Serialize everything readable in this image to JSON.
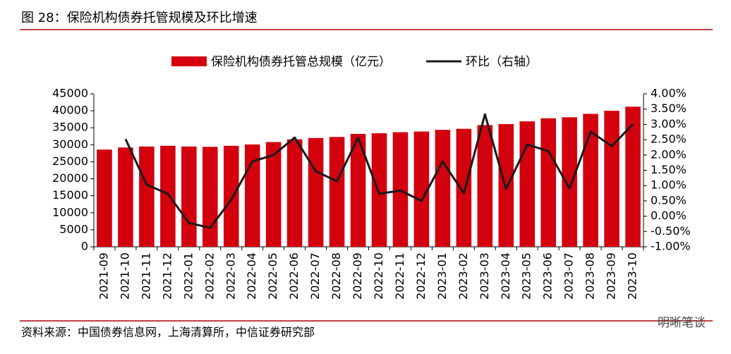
{
  "chart_data": {
    "type": "bar_line",
    "title": "图 28：保险机构债券托管规模及环比增速",
    "source": "资料来源：中国债券信息网，上海清算所，中信证券研究部",
    "watermark": "明晰笔谈",
    "categories": [
      "2021-09",
      "2021-10",
      "2021-11",
      "2021-12",
      "2022-01",
      "2022-02",
      "2022-03",
      "2022-04",
      "2022-05",
      "2022-06",
      "2022-07",
      "2022-08",
      "2022-09",
      "2022-10",
      "2022-11",
      "2022-12",
      "2023-01",
      "2023-02",
      "2023-03",
      "2023-04",
      "2023-05",
      "2023-06",
      "2023-07",
      "2023-08",
      "2023-09",
      "2023-10"
    ],
    "series": [
      {
        "name": "保险机构债券托管总规模（亿元）",
        "color": "#d3000d",
        "type": "bar",
        "values": [
          28600,
          29200,
          29500,
          29700,
          29500,
          29400,
          29700,
          30100,
          30800,
          31600,
          32000,
          32300,
          33200,
          33400,
          33700,
          33900,
          34400,
          34700,
          35800,
          36100,
          36900,
          37800,
          38100,
          39100,
          40000,
          41200
        ]
      },
      {
        "name": "环比（右轴）",
        "color": "#1a1a1a",
        "type": "line",
        "axis": "y2",
        "values": [
          null,
          2.52,
          1.03,
          0.73,
          -0.22,
          -0.38,
          0.54,
          1.79,
          2.0,
          2.57,
          1.47,
          1.14,
          2.57,
          0.73,
          0.84,
          0.5,
          1.79,
          0.75,
          3.33,
          0.89,
          2.34,
          2.13,
          0.91,
          2.76,
          2.29,
          3.01
        ]
      }
    ],
    "ylim": [
      0,
      45000
    ],
    "yticks": [
      0,
      5000,
      10000,
      15000,
      20000,
      25000,
      30000,
      35000,
      40000,
      45000
    ],
    "y2lim": [
      -1,
      4
    ],
    "y2ticks": [
      {
        "value": -1,
        "label": "-1.00%"
      },
      {
        "value": -0.5,
        "label": "-0.50%"
      },
      {
        "value": 0,
        "label": "0.00%"
      },
      {
        "value": 0.5,
        "label": "0.50%"
      },
      {
        "value": 1,
        "label": "1.00%"
      },
      {
        "value": 1.5,
        "label": "1.50%"
      },
      {
        "value": 2,
        "label": "2.00%"
      },
      {
        "value": 2.5,
        "label": "2.50%"
      },
      {
        "value": 3,
        "label": "3.00%"
      },
      {
        "value": 3.5,
        "label": "3.50%"
      },
      {
        "value": 4,
        "label": "4.00%"
      }
    ],
    "legend": "top"
  }
}
